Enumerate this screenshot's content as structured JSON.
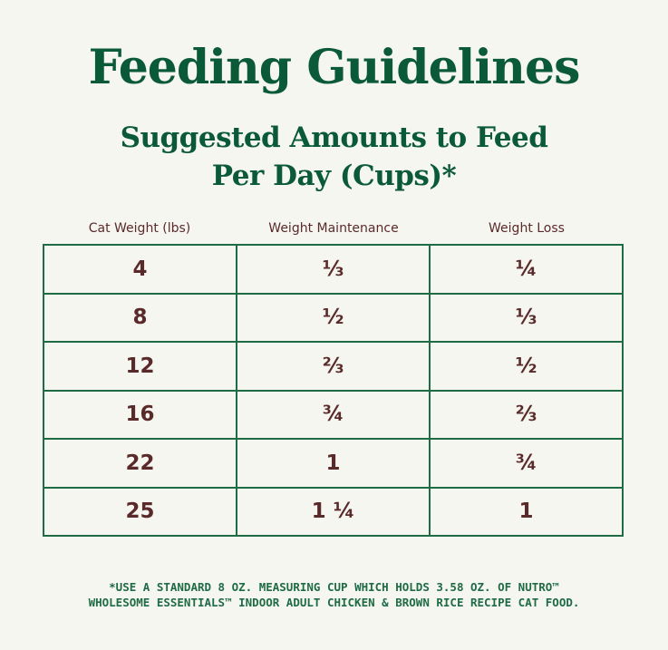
{
  "header": {
    "title": "Feeding Guidelines",
    "subtitle": [
      "Suggested Amounts to Feed",
      "Per Day (Cups)*"
    ]
  },
  "table": {
    "columns": [
      "Cat Weight (lbs)",
      "Weight Maintenance",
      "Weight Loss"
    ],
    "rows": [
      [
        "4",
        "⅓",
        "¼"
      ],
      [
        "8",
        "½",
        "⅓"
      ],
      [
        "12",
        "⅔",
        "½"
      ],
      [
        "16",
        "¾",
        "⅔"
      ],
      [
        "22",
        "1",
        "¾"
      ],
      [
        "25",
        "1 ¼",
        "1"
      ]
    ]
  },
  "footnote": [
    "*USE A STANDARD 8 OZ. MEASURING CUP WHICH HOLDS 3.58 OZ. OF NUTRO™",
    "WHOLESOME ESSENTIALS™ INDOOR ADULT CHICKEN & BROWN RICE RECIPE CAT FOOD."
  ]
}
